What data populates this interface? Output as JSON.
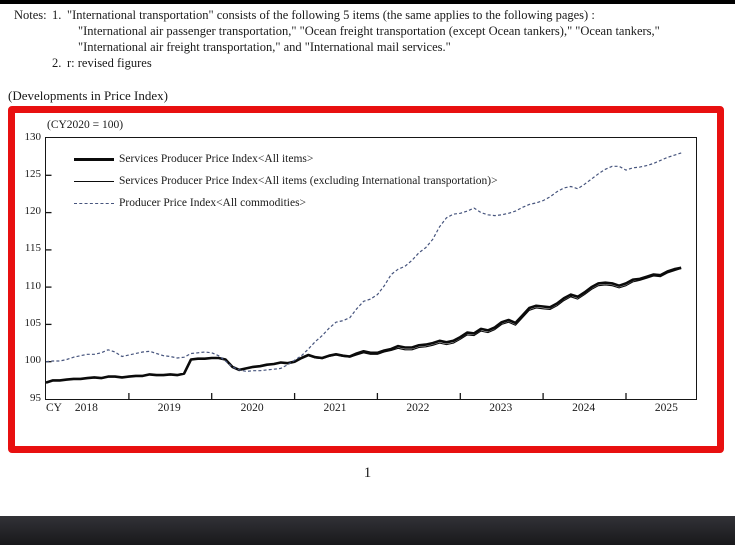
{
  "notes": {
    "label": "Notes:",
    "item1_num": "1.",
    "item1_lines": [
      "\"International transportation\" consists of the following 5 items (the same applies to the following pages) :",
      "\"International air passenger transportation,\" \"Ocean freight transportation (except Ocean tankers),\" \"Ocean tankers,\"",
      "\"International air freight transportation,\" and \"International mail services.\""
    ],
    "item2_num": "2.",
    "item2_text": "r: revised figures"
  },
  "section_title": "(Developments in Price Index)",
  "page_number": "1",
  "colors": {
    "highlight_box": "#e81010",
    "axis_and_text": "#161616",
    "ppi_line": "#46547d"
  },
  "chart_data": {
    "type": "line",
    "title": "(Developments in Price Index)",
    "base_label": "(CY2020 = 100)",
    "ylim": [
      95,
      130
    ],
    "yticks": [
      130,
      125,
      120,
      115,
      110,
      105,
      100,
      95
    ],
    "grid": "off",
    "legend_position": "inside-top-left",
    "x_axis": {
      "prefix": "CY",
      "years": [
        "2018",
        "2019",
        "2020",
        "2021",
        "2022",
        "2023",
        "2024",
        "2025"
      ],
      "frequency": "monthly",
      "x_start": "2018-01",
      "x_end": "2025-09"
    },
    "series": [
      {
        "id": "sppi-all-items",
        "name": "Services Producer Price Index<All items>",
        "color": "#0b0b0b",
        "width": 2.6,
        "dash": false,
        "values": [
          97.2,
          97.5,
          97.5,
          97.6,
          97.7,
          97.7,
          97.8,
          97.9,
          97.8,
          98.0,
          98.0,
          97.9,
          98.0,
          98.1,
          98.1,
          98.3,
          98.2,
          98.2,
          98.3,
          98.2,
          98.4,
          100.3,
          100.4,
          100.4,
          100.5,
          100.5,
          100.3,
          99.3,
          98.9,
          99.1,
          99.3,
          99.4,
          99.6,
          99.7,
          99.9,
          99.8,
          100.0,
          100.5,
          100.9,
          100.6,
          100.5,
          100.8,
          101.0,
          100.8,
          100.7,
          101.1,
          101.4,
          101.2,
          101.2,
          101.5,
          101.7,
          102.1,
          101.9,
          101.9,
          102.2,
          102.3,
          102.5,
          102.8,
          102.6,
          102.8,
          103.3,
          103.9,
          103.8,
          104.4,
          104.2,
          104.6,
          105.3,
          105.6,
          105.2,
          106.2,
          107.2,
          107.5,
          107.4,
          107.3,
          107.8,
          108.5,
          109.0,
          108.7,
          109.3,
          110.0,
          110.5,
          110.6,
          110.5,
          110.2,
          110.5,
          111.0,
          111.1,
          111.4,
          111.7,
          111.6,
          112.1,
          112.4,
          112.6
        ]
      },
      {
        "id": "sppi-excl-intl-transport",
        "name": "Services Producer Price Index<All items (excluding International transportation)>",
        "color": "#0b0b0b",
        "width": 1.1,
        "dash": false,
        "values": [
          97.2,
          97.5,
          97.5,
          97.6,
          97.7,
          97.7,
          97.8,
          97.9,
          97.8,
          98.0,
          98.0,
          97.9,
          98.0,
          98.1,
          98.1,
          98.3,
          98.2,
          98.2,
          98.3,
          98.2,
          98.4,
          100.3,
          100.4,
          100.4,
          100.5,
          100.5,
          100.3,
          99.3,
          98.9,
          99.1,
          99.3,
          99.4,
          99.6,
          99.7,
          99.9,
          99.8,
          100.0,
          100.5,
          100.8,
          100.5,
          100.4,
          100.7,
          100.9,
          100.7,
          100.6,
          100.9,
          101.2,
          101.0,
          101.0,
          101.3,
          101.5,
          101.8,
          101.6,
          101.6,
          101.9,
          102.0,
          102.2,
          102.5,
          102.3,
          102.5,
          103.0,
          103.6,
          103.5,
          104.1,
          103.9,
          104.3,
          105.0,
          105.3,
          104.9,
          105.9,
          106.9,
          107.2,
          107.1,
          107.0,
          107.5,
          108.2,
          108.7,
          108.4,
          109.0,
          109.7,
          110.2,
          110.3,
          110.2,
          109.9,
          110.2,
          110.7,
          110.9,
          111.2,
          111.5,
          111.4,
          111.9,
          112.2,
          112.5
        ]
      },
      {
        "id": "ppi-all-commodities",
        "name": "Producer Price Index<All commodities>",
        "color": "#46547d",
        "width": 1.2,
        "dash": true,
        "values": [
          100.0,
          100.1,
          100.1,
          100.3,
          100.6,
          100.8,
          101.0,
          101.0,
          101.2,
          101.6,
          101.3,
          100.7,
          100.9,
          101.1,
          101.3,
          101.4,
          101.1,
          100.8,
          100.7,
          100.5,
          100.6,
          101.1,
          101.2,
          101.3,
          101.2,
          100.8,
          100.1,
          99.3,
          98.9,
          98.7,
          98.8,
          98.8,
          98.9,
          99.0,
          99.1,
          99.6,
          100.2,
          100.8,
          101.7,
          102.7,
          103.5,
          104.5,
          105.3,
          105.5,
          105.9,
          107.1,
          108.1,
          108.4,
          109.0,
          110.2,
          111.7,
          112.4,
          112.8,
          113.6,
          114.6,
          115.3,
          116.4,
          118.1,
          119.3,
          119.8,
          119.9,
          120.2,
          120.6,
          120.0,
          119.7,
          119.6,
          119.7,
          119.9,
          120.2,
          120.7,
          121.1,
          121.3,
          121.6,
          122.1,
          122.8,
          123.3,
          123.5,
          123.2,
          123.8,
          124.5,
          125.2,
          125.8,
          126.2,
          126.2,
          125.7,
          126.0,
          126.1,
          126.3,
          126.6,
          127.0,
          127.4,
          127.7,
          128.0
        ]
      }
    ]
  }
}
